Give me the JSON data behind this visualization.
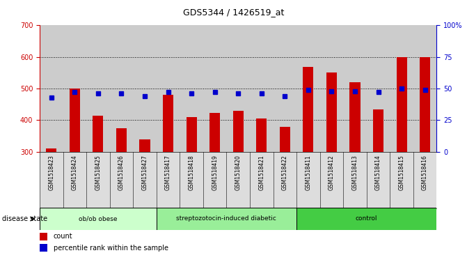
{
  "title": "GDS5344 / 1426519_at",
  "samples": [
    "GSM1518423",
    "GSM1518424",
    "GSM1518425",
    "GSM1518426",
    "GSM1518427",
    "GSM1518417",
    "GSM1518418",
    "GSM1518419",
    "GSM1518420",
    "GSM1518421",
    "GSM1518422",
    "GSM1518411",
    "GSM1518412",
    "GSM1518413",
    "GSM1518414",
    "GSM1518415",
    "GSM1518416"
  ],
  "counts": [
    310,
    500,
    415,
    375,
    340,
    480,
    410,
    422,
    430,
    405,
    378,
    568,
    550,
    520,
    435,
    600,
    600
  ],
  "percentiles": [
    43,
    47,
    46,
    46,
    44,
    47,
    46,
    47,
    46,
    46,
    44,
    49,
    48,
    48,
    47,
    50,
    49
  ],
  "groups": [
    {
      "label": "ob/ob obese",
      "start": 0,
      "end": 5,
      "color": "#ccffcc"
    },
    {
      "label": "streptozotocin-induced diabetic",
      "start": 5,
      "end": 11,
      "color": "#99ee99"
    },
    {
      "label": "control",
      "start": 11,
      "end": 17,
      "color": "#44cc44"
    }
  ],
  "ylim_left": [
    300,
    700
  ],
  "ylim_right": [
    0,
    100
  ],
  "yticks_left": [
    300,
    400,
    500,
    600,
    700
  ],
  "yticks_right": [
    0,
    25,
    50,
    75,
    100
  ],
  "bar_color": "#cc0000",
  "dot_color": "#0000cc",
  "bg_color": "#cccccc",
  "left_axis_color": "#cc0000",
  "right_axis_color": "#0000cc",
  "disease_state_label": "disease state",
  "legend_count": "count",
  "legend_pct": "percentile rank within the sample",
  "group_bg": "#dddddd"
}
